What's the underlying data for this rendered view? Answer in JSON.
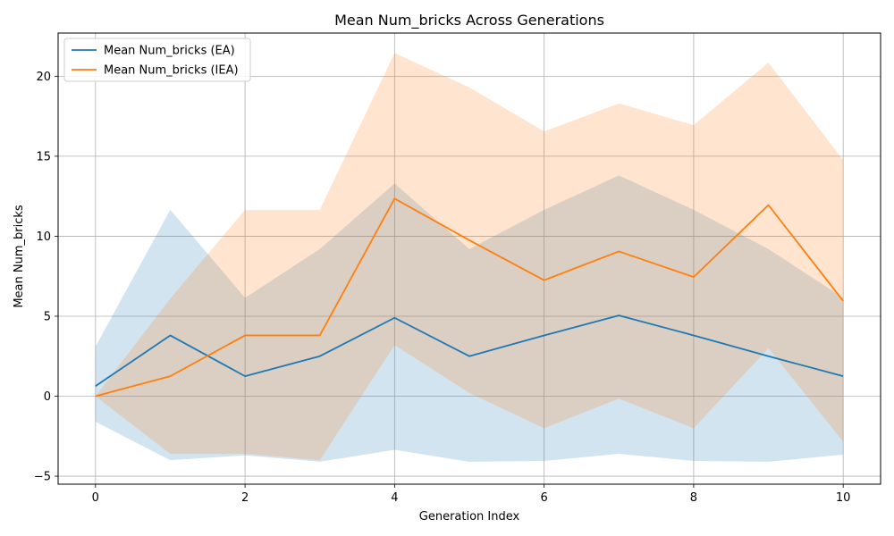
{
  "chart_data": {
    "type": "line",
    "title": "Mean Num_bricks Across Generations",
    "xlabel": "Generation Index",
    "ylabel": "Mean Num_bricks",
    "x": [
      0,
      1,
      2,
      3,
      4,
      5,
      6,
      7,
      8,
      9,
      10
    ],
    "xlim": [
      -0.5,
      10.5
    ],
    "ylim": [
      -5.5,
      22.7
    ],
    "xticks": [
      0,
      2,
      4,
      6,
      8,
      10
    ],
    "yticks": [
      -5,
      0,
      5,
      10,
      15,
      20
    ],
    "grid": true,
    "legend_position": "top-left",
    "series": [
      {
        "name": "Mean Num_bricks (EA)",
        "color": "#1f77b4",
        "band_color": "#1f77b4",
        "values": [
          0.63,
          3.8,
          1.25,
          2.5,
          4.9,
          2.5,
          3.8,
          5.05,
          3.8,
          2.5,
          1.25
        ],
        "lower": [
          -1.6,
          -4.0,
          -3.7,
          -4.1,
          -3.35,
          -4.1,
          -4.05,
          -3.6,
          -4.05,
          -4.1,
          -3.65
        ],
        "upper": [
          3.1,
          11.65,
          6.15,
          9.2,
          13.3,
          9.2,
          11.65,
          13.8,
          11.65,
          9.2,
          6.15
        ]
      },
      {
        "name": "Mean Num_bricks (IEA)",
        "color": "#ff7f0e",
        "band_color": "#ff7f0e",
        "values": [
          0.0,
          1.25,
          3.8,
          3.8,
          12.35,
          9.75,
          7.25,
          9.05,
          7.45,
          11.95,
          5.95
        ],
        "lower": [
          0.0,
          -3.6,
          -3.6,
          -4.0,
          3.2,
          0.2,
          -2.0,
          -0.15,
          -2.0,
          3.0,
          -2.85
        ],
        "upper": [
          0.0,
          6.1,
          11.65,
          11.65,
          21.45,
          19.3,
          16.55,
          18.3,
          16.95,
          20.85,
          14.75
        ]
      }
    ]
  }
}
